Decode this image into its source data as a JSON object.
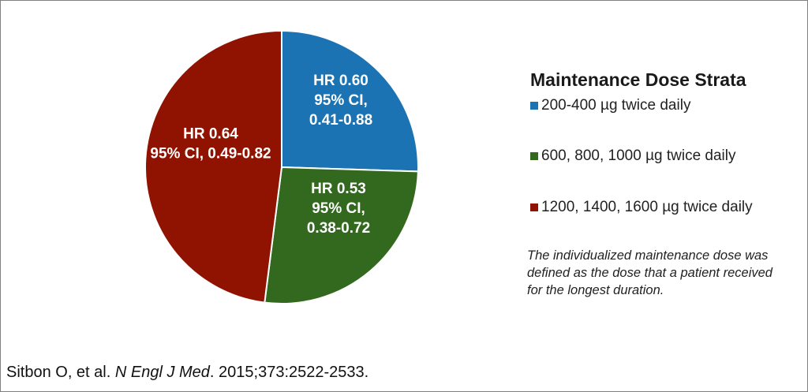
{
  "chart_data": {
    "type": "pie",
    "title": "Maintenance Dose Strata",
    "slices": [
      {
        "category": "200-400 µg twice daily",
        "value": 25.5,
        "color": "#1b73b3",
        "label_lines": [
          "HR 0.60",
          "95% CI,",
          "0.41-0.88"
        ]
      },
      {
        "category": "600, 800, 1000 µg twice daily",
        "value": 26.5,
        "color": "#33691e",
        "label_lines": [
          "HR 0.53",
          "95% CI,",
          "0.38-0.72"
        ]
      },
      {
        "category": "1200, 1400, 1600 µg twice daily",
        "value": 48.0,
        "color": "#8f1300",
        "label_lines": [
          "HR 0.64",
          "95% CI, 0.49-0.82"
        ]
      }
    ],
    "legend_position": "right"
  },
  "legend": {
    "title": "Maintenance Dose Strata",
    "items": [
      {
        "label": "200-400 µg twice daily",
        "color": "#1b73b3"
      },
      {
        "label": "600, 800, 1000 µg twice daily",
        "color": "#33691e"
      },
      {
        "label": "1200, 1400, 1600 µg twice daily",
        "color": "#8f1300"
      }
    ]
  },
  "note": "The individualized maintenance dose was defined as the dose that a patient received for the longest duration.",
  "citation": {
    "authors": "Sitbon O, et al. ",
    "journal": "N Engl J Med",
    "details": ". 2015;373:2522-2533."
  }
}
